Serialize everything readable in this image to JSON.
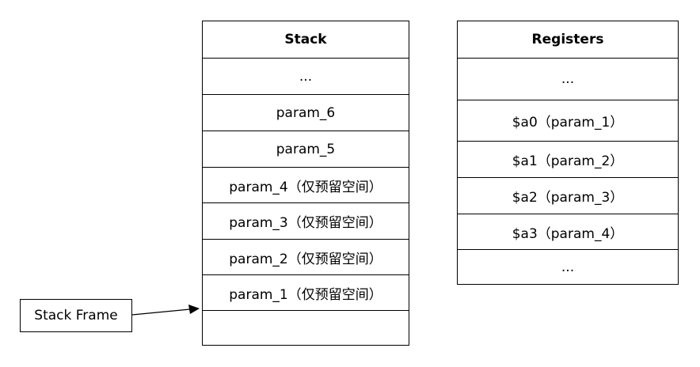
{
  "stack": {
    "title": "Stack",
    "rows": [
      "...",
      "param_6",
      "param_5",
      "param_4（仅预留空间）",
      "param_3（仅预留空间）",
      "param_2（仅预留空间）",
      "param_1（仅预留空间）",
      ""
    ]
  },
  "registers": {
    "title": "Registers",
    "rows": [
      "...",
      "$a0（param_1）",
      "$a1（param_2）",
      "$a2（param_3）",
      "$a3（param_4）",
      "..."
    ]
  },
  "frame_label": "Stack Frame"
}
